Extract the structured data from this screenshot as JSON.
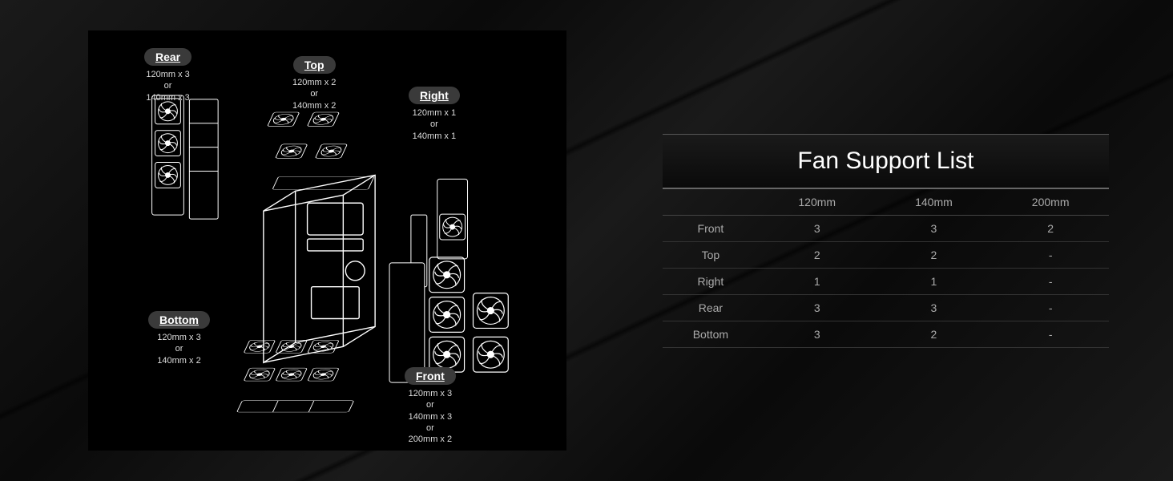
{
  "diagram": {
    "callouts": {
      "rear": {
        "label": "Rear",
        "specs": [
          "120mm x 3",
          "or",
          "140mm x 3"
        ]
      },
      "top": {
        "label": "Top",
        "specs": [
          "120mm x 2",
          "or",
          "140mm x 2"
        ]
      },
      "right": {
        "label": "Right",
        "specs": [
          "120mm x 1",
          "or",
          "140mm x 1"
        ]
      },
      "bottom": {
        "label": "Bottom",
        "specs": [
          "120mm x 3",
          "or",
          "140mm x 2"
        ]
      },
      "front": {
        "label": "Front",
        "specs": [
          "120mm x 3",
          "or",
          "140mm x 3",
          "or",
          "200mm x 2"
        ]
      }
    },
    "colors": {
      "line": "#ffffff",
      "fill": "#000000",
      "pill_bg": "#3a3a3a",
      "text": "#dddddd"
    }
  },
  "table": {
    "title": "Fan Support List",
    "columns": [
      "",
      "120mm",
      "140mm",
      "200mm"
    ],
    "rows": [
      [
        "Front",
        "3",
        "3",
        "2"
      ],
      [
        "Top",
        "2",
        "2",
        "-"
      ],
      [
        "Right",
        "1",
        "1",
        "-"
      ],
      [
        "Rear",
        "3",
        "3",
        "-"
      ],
      [
        "Bottom",
        "3",
        "2",
        "-"
      ]
    ],
    "colors": {
      "title_text": "#ffffff",
      "cell_text": "#aaaaaa",
      "border": "#444444",
      "header_border": "#666666",
      "bg": "#000000"
    },
    "title_fontsize": 30,
    "cell_fontsize": 14
  }
}
